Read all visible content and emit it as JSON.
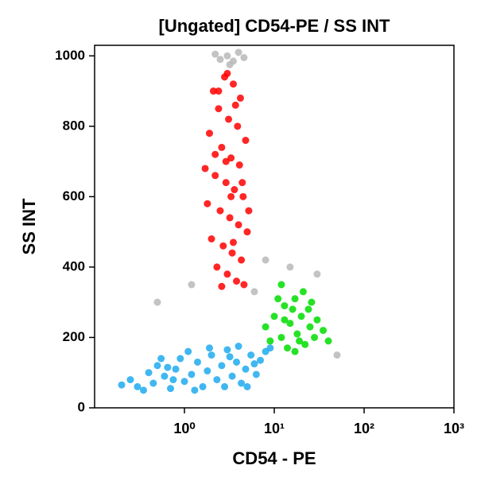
{
  "chart_data": {
    "type": "scatter",
    "title": "[Ungated] CD54-PE / SS INT",
    "x_label": "CD54 - PE",
    "y_label": "SS INT",
    "xscale": "log",
    "xlim": [
      0.1,
      1000
    ],
    "ylim": [
      0,
      1030
    ],
    "xticks": [
      {
        "value": 1,
        "label": "10⁰"
      },
      {
        "value": 10,
        "label": "10¹"
      },
      {
        "value": 100,
        "label": "10²"
      },
      {
        "value": 1000,
        "label": "10³"
      }
    ],
    "yticks": [
      0,
      200,
      400,
      600,
      800,
      1000
    ],
    "series": [
      {
        "color": "#b8b8b8",
        "x": [
          3,
          2.5,
          4,
          3.5,
          2.2,
          6,
          15,
          0.5,
          50,
          4.6,
          3.2,
          8,
          30,
          1.2
        ],
        "values": [
          1000,
          990,
          1010,
          985,
          1005,
          330,
          400,
          300,
          150,
          995,
          975,
          420,
          380,
          350
        ]
      },
      {
        "color": "#ff0000",
        "x": [
          2.1,
          2.8,
          3.5,
          4.2,
          2.4,
          3.1,
          3.9,
          4.8,
          1.9,
          2.6,
          3.3,
          4.1,
          2.2,
          2.9,
          3.6,
          4.5,
          1.8,
          2.5,
          3.2,
          4.0,
          5.0,
          2.0,
          2.7,
          3.4,
          4.3,
          2.3,
          3.0,
          3.8,
          4.6,
          2.6,
          3.5,
          2.9,
          3.7,
          2.2,
          4.4,
          3.0,
          1.7,
          5.2,
          2.4,
          3.3
        ],
        "values": [
          900,
          940,
          920,
          880,
          850,
          820,
          800,
          760,
          780,
          740,
          710,
          690,
          660,
          640,
          620,
          600,
          580,
          560,
          540,
          520,
          500,
          480,
          460,
          440,
          420,
          400,
          380,
          360,
          350,
          345,
          470,
          700,
          860,
          720,
          640,
          950,
          680,
          560,
          900,
          600
        ]
      },
      {
        "color": "#00dd00",
        "x": [
          8,
          10,
          12,
          13,
          15,
          17,
          18,
          20,
          22,
          25,
          14,
          11,
          16,
          19,
          24,
          28,
          30,
          9,
          21,
          35,
          13,
          17,
          26,
          40,
          12
        ],
        "values": [
          230,
          260,
          200,
          290,
          240,
          310,
          210,
          260,
          180,
          230,
          170,
          310,
          280,
          190,
          280,
          200,
          250,
          190,
          330,
          220,
          250,
          160,
          300,
          190,
          350
        ]
      },
      {
        "color": "#1eaaee",
        "x": [
          0.25,
          0.3,
          0.4,
          0.45,
          0.5,
          0.6,
          0.7,
          0.8,
          0.9,
          1.0,
          1.2,
          1.4,
          1.6,
          1.8,
          2.0,
          2.3,
          2.6,
          3.0,
          3.4,
          3.8,
          4.3,
          4.8,
          5.5,
          6.3,
          7.0,
          8.0,
          0.35,
          0.55,
          0.75,
          1.1,
          1.3,
          2.8,
          4.0,
          5.0,
          9.0,
          0.2,
          1.9,
          3.2,
          6.0,
          0.65
        ],
        "values": [
          80,
          60,
          100,
          70,
          120,
          90,
          55,
          110,
          140,
          75,
          95,
          130,
          60,
          105,
          150,
          80,
          120,
          165,
          90,
          130,
          70,
          110,
          150,
          95,
          135,
          160,
          50,
          140,
          80,
          160,
          50,
          60,
          175,
          60,
          170,
          65,
          170,
          145,
          125,
          115
        ]
      }
    ]
  }
}
